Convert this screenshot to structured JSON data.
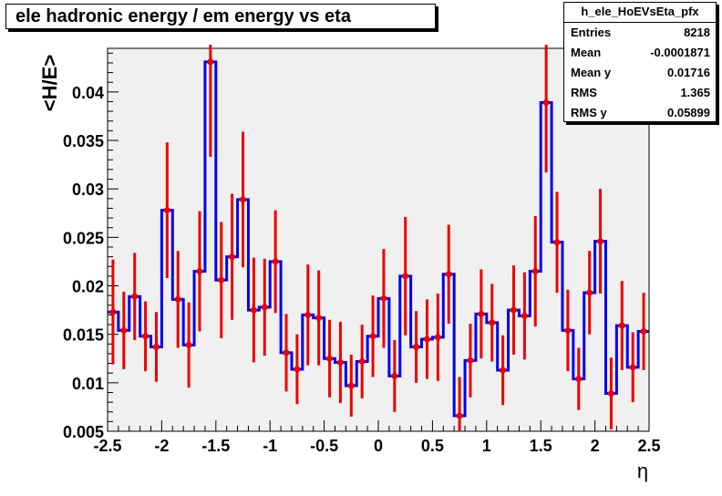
{
  "title": "ele hadronic energy / em energy vs eta",
  "stats_box": {
    "name": "h_ele_HoEVsEta_pfx",
    "rows": [
      {
        "label": "Entries",
        "value": "8218"
      },
      {
        "label": "Mean",
        "value": "-0.0001871"
      },
      {
        "label": "Mean y",
        "value": "0.01716"
      },
      {
        "label": "RMS",
        "value": "1.365"
      },
      {
        "label": "RMS y",
        "value": "0.05899"
      }
    ]
  },
  "colors": {
    "frame_bg": "#f0f0f0",
    "line": "#0000ee",
    "points": "#ee0000"
  },
  "chart_data": {
    "type": "line",
    "title": "ele hadronic energy / em energy vs eta",
    "xlabel": "η",
    "ylabel": "<H/E>",
    "xlim": [
      -2.5,
      2.5
    ],
    "ylim": [
      0.005,
      0.0445
    ],
    "grid": false,
    "x_ticks": [
      -2.5,
      -2,
      -1.5,
      -1,
      -0.5,
      0,
      0.5,
      1,
      1.5,
      2,
      2.5
    ],
    "x_tick_labels": [
      "-2.5",
      "-2",
      "-1.5",
      "-1",
      "-0.5",
      "0",
      "0.5",
      "1",
      "1.5",
      "2",
      "2.5"
    ],
    "y_ticks": [
      0.005,
      0.01,
      0.015,
      0.02,
      0.025,
      0.03,
      0.035,
      0.04
    ],
    "y_tick_labels": [
      "0.005",
      "0.01",
      "0.015",
      "0.02",
      "0.025",
      "0.03",
      "0.035",
      "0.04"
    ],
    "bin_width": 0.1,
    "x": [
      -2.45,
      -2.35,
      -2.25,
      -2.15,
      -2.05,
      -1.95,
      -1.85,
      -1.75,
      -1.65,
      -1.55,
      -1.45,
      -1.35,
      -1.25,
      -1.15,
      -1.05,
      -0.95,
      -0.85,
      -0.75,
      -0.65,
      -0.55,
      -0.45,
      -0.35,
      -0.25,
      -0.15,
      -0.05,
      0.05,
      0.15,
      0.25,
      0.35,
      0.45,
      0.55,
      0.65,
      0.75,
      0.85,
      0.95,
      1.05,
      1.15,
      1.25,
      1.35,
      1.45,
      1.55,
      1.65,
      1.75,
      1.85,
      1.95,
      2.05,
      2.15,
      2.25,
      2.35,
      2.45
    ],
    "y": [
      0.0173,
      0.0154,
      0.0189,
      0.0148,
      0.0137,
      0.0278,
      0.0186,
      0.0139,
      0.0215,
      0.0431,
      0.0206,
      0.023,
      0.0289,
      0.0175,
      0.0178,
      0.0225,
      0.0131,
      0.0114,
      0.017,
      0.0167,
      0.0125,
      0.0121,
      0.0097,
      0.0122,
      0.0148,
      0.0187,
      0.0107,
      0.021,
      0.0137,
      0.0145,
      0.0147,
      0.0212,
      0.0066,
      0.0123,
      0.0171,
      0.0162,
      0.0113,
      0.0175,
      0.0169,
      0.0215,
      0.0389,
      0.0245,
      0.0154,
      0.0104,
      0.0193,
      0.0246,
      0.0089,
      0.0159,
      0.0116,
      0.0153
    ],
    "yerr": [
      0.0054,
      0.004,
      0.0045,
      0.0036,
      0.0036,
      0.007,
      0.005,
      0.0044,
      0.0062,
      0.0098,
      0.006,
      0.0065,
      0.007,
      0.0054,
      0.005,
      0.0053,
      0.004,
      0.0036,
      0.0052,
      0.0049,
      0.004,
      0.0042,
      0.0032,
      0.0038,
      0.0042,
      0.0051,
      0.0037,
      0.0061,
      0.0037,
      0.0041,
      0.0045,
      0.0051,
      0.004,
      0.0038,
      0.0046,
      0.004,
      0.0036,
      0.0046,
      0.0045,
      0.0057,
      0.0072,
      0.0052,
      0.0042,
      0.0032,
      0.0043,
      0.0054,
      0.0037,
      0.0046,
      0.0036,
      0.004
    ]
  }
}
